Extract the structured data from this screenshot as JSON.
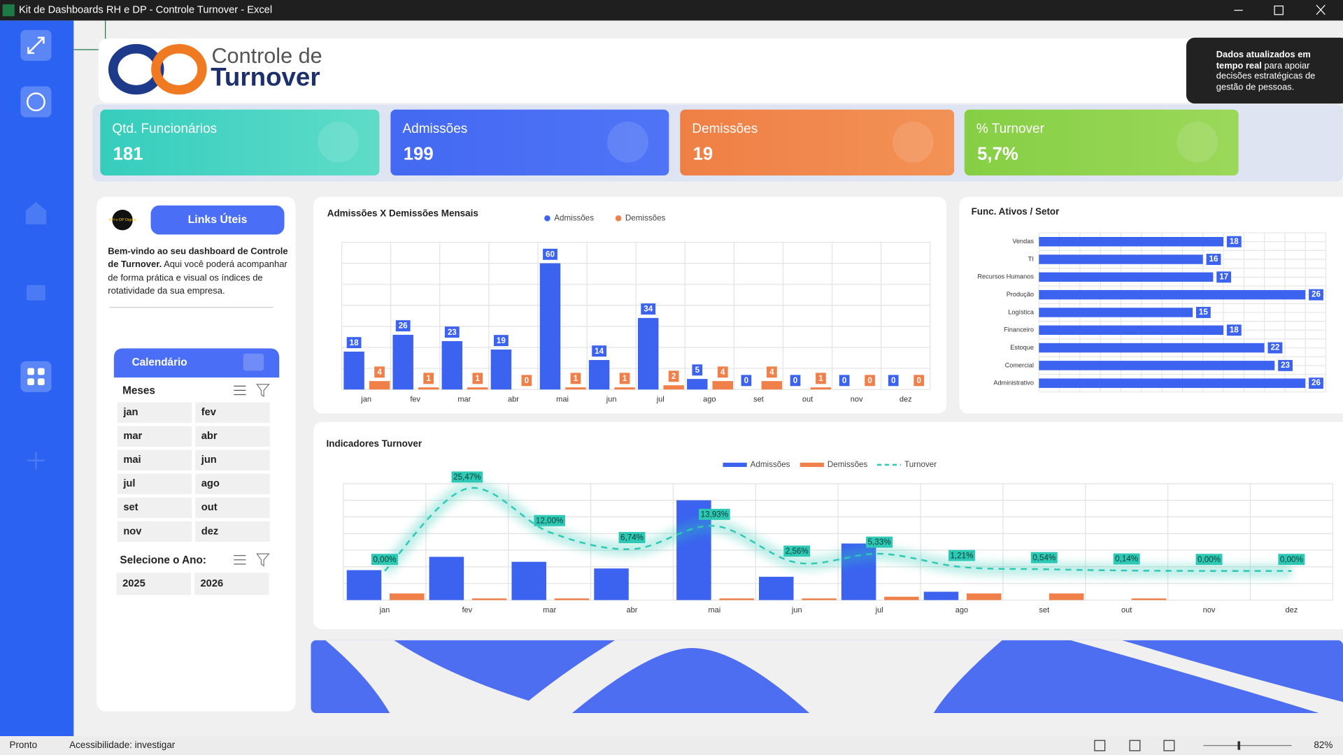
{
  "window": {
    "title": "Kit de Dashboards RH e DP - Controle Turnover - Excel"
  },
  "header": {
    "title_line1": "Controle de",
    "title_line2": "Turnover",
    "info_bold": "Dados atualizados em tempo real",
    "info_text": "para apoiar decisões estratégicas de gestão de pessoas."
  },
  "kpis": [
    {
      "label": "Qtd. Funcionários",
      "value": "181"
    },
    {
      "label": "Admissões",
      "value": "199"
    },
    {
      "label": "Demissões",
      "value": "19"
    },
    {
      "label": "% Turnover",
      "value": "5,7%"
    }
  ],
  "links_panel": {
    "logo": "RH e DP Digital",
    "button": "Links Úteis",
    "intro_bold": "Bem-vindo ao seu dashboard de Controle de Turnover.",
    "intro_text": "Aqui você poderá acompanhar de forma prática e visual os índices de rotatividade da sua empresa."
  },
  "calendar": {
    "title": "Calendário",
    "months_label": "Meses",
    "months": [
      "jan",
      "fev",
      "mar",
      "abr",
      "mai",
      "jun",
      "jul",
      "ago",
      "set",
      "out",
      "nov",
      "dez"
    ],
    "year_label": "Selecione o Ano:",
    "years": [
      "2025",
      "2026"
    ]
  },
  "status_bar": {
    "status": "Pronto",
    "accessibility": "Acessibilidade: investigar",
    "zoom": "82%"
  },
  "chart_data": [
    {
      "type": "bar",
      "title": "Admissões X Demissões Mensais",
      "categories": [
        "jan",
        "fev",
        "mar",
        "abr",
        "mai",
        "jun",
        "jul",
        "ago",
        "set",
        "out",
        "nov",
        "dez"
      ],
      "series": [
        {
          "name": "Admissões",
          "color": "#3b63f0",
          "values": [
            18,
            26,
            23,
            19,
            60,
            14,
            34,
            5,
            0,
            0,
            0,
            0
          ]
        },
        {
          "name": "Demissões",
          "color": "#f0804a",
          "values": [
            4,
            1,
            1,
            0,
            1,
            1,
            2,
            4,
            4,
            1,
            0,
            0
          ]
        }
      ],
      "ylim": [
        0,
        70
      ],
      "yticks": [
        0,
        10,
        20,
        30,
        40,
        50,
        60,
        70
      ],
      "grid": true,
      "legend": "top"
    },
    {
      "type": "hbar",
      "title": "Func. Ativos / Setor",
      "categories": [
        "Vendas",
        "TI",
        "Recursos Humanos",
        "Produção",
        "Logística",
        "Financeiro",
        "Estoque",
        "Comercial",
        "Administrativo"
      ],
      "values": [
        18,
        16,
        17,
        26,
        15,
        18,
        22,
        23,
        26
      ],
      "color": "#3b63f0",
      "xlim": [
        0,
        28
      ],
      "xticks": [
        0,
        2,
        4,
        6,
        8,
        10,
        12,
        14,
        16,
        18,
        20,
        22,
        24,
        26,
        28
      ],
      "grid": true
    },
    {
      "type": "combo",
      "title": "Indicadores Turnover",
      "categories": [
        "jan",
        "fev",
        "mar",
        "abr",
        "mai",
        "jun",
        "jul",
        "ago",
        "set",
        "out",
        "nov",
        "dez"
      ],
      "series": [
        {
          "name": "Admissões",
          "type": "bar",
          "color": "#3b63f0",
          "values": [
            18,
            26,
            23,
            19,
            60,
            14,
            34,
            5,
            0,
            0,
            0,
            0
          ]
        },
        {
          "name": "Demissões",
          "type": "bar",
          "color": "#f0804a",
          "values": [
            4,
            1,
            1,
            0,
            1,
            1,
            2,
            4,
            4,
            1,
            0,
            0
          ]
        },
        {
          "name": "Turnover",
          "type": "line",
          "axis": "y2",
          "color": "#2ec9b5",
          "values": [
            0,
            25.47,
            12.0,
            6.74,
            13.93,
            2.56,
            5.33,
            1.21,
            0.54,
            0.14,
            0,
            0
          ],
          "value_labels": [
            "0,00%",
            "25,47%",
            "12,00%",
            "6,74%",
            "13,93%",
            "2,56%",
            "5,33%",
            "1,21%",
            "0,54%",
            "0,14%",
            "0,00%",
            "0,00%"
          ]
        }
      ],
      "ylim": [
        0,
        70
      ],
      "yticks": [
        0,
        10,
        20,
        30,
        40,
        50,
        60,
        70
      ],
      "y2lim": [
        -9,
        27
      ],
      "grid": true,
      "legend": "top"
    }
  ]
}
